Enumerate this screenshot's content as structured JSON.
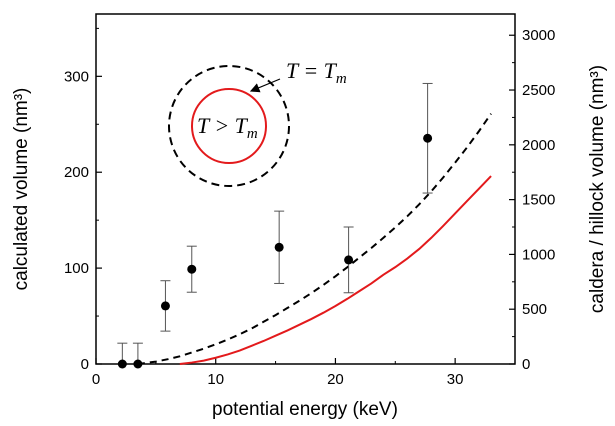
{
  "chart_data": {
    "type": "scatter",
    "xlabel": "potential energy (keV)",
    "ylabel_left": "calculated volume (nm³)",
    "ylabel_right": "caldera / hillock volume (nm³)",
    "xlim": [
      0,
      35
    ],
    "ylim_left": [
      0,
      365
    ],
    "ylim_right": [
      0,
      3193.75
    ],
    "x_ticks": [
      "0",
      "10",
      "20",
      "30"
    ],
    "y_left_ticks": [
      "0",
      "100",
      "200",
      "300"
    ],
    "y_right_ticks": [
      "0",
      "500",
      "1000",
      "1500",
      "2000",
      "2500",
      "3000"
    ],
    "series": [
      {
        "style": "dashed black line",
        "axis": "left",
        "x": [
          3.5,
          5,
          6,
          7,
          8,
          9,
          10,
          11,
          12,
          13,
          14,
          15,
          16,
          17,
          18,
          19,
          20,
          21,
          22,
          23,
          24,
          25,
          26,
          27,
          28,
          29,
          30,
          31,
          32,
          33
        ],
        "y": [
          0,
          2.5,
          5,
          8,
          12,
          16,
          20.5,
          25.5,
          31,
          37,
          44,
          51,
          58.5,
          66,
          74,
          82.5,
          91.5,
          101,
          111,
          121,
          131.5,
          142.5,
          154,
          166.5,
          180,
          194.5,
          210,
          226,
          243,
          261
        ]
      },
      {
        "style": "solid red line",
        "axis": "left",
        "x": [
          7,
          8,
          9,
          10,
          11,
          12,
          13,
          14,
          15,
          16,
          17,
          18,
          19,
          20,
          21,
          22,
          23,
          24,
          25,
          26,
          27,
          28,
          29,
          30,
          31,
          32,
          33
        ],
        "y": [
          0,
          1.5,
          3.5,
          6.5,
          10,
          14,
          19,
          24,
          29.5,
          35,
          41,
          47,
          53.5,
          60.5,
          68,
          76,
          84,
          93,
          101,
          110,
          120,
          131.5,
          144,
          157,
          170,
          183,
          196
        ]
      },
      {
        "style": "black points with error bars",
        "axis": "right",
        "points": [
          {
            "x": 2.2,
            "y": 0,
            "err": 190
          },
          {
            "x": 3.5,
            "y": 0,
            "err": 190
          },
          {
            "x": 5.8,
            "y": 530,
            "err": 230
          },
          {
            "x": 8.0,
            "y": 865,
            "err": 210
          },
          {
            "x": 15.3,
            "y": 1065,
            "err": 330
          },
          {
            "x": 21.1,
            "y": 950,
            "err": 300
          },
          {
            "x": 27.7,
            "y": 2060,
            "err": 500
          }
        ]
      }
    ],
    "annotations": [
      {
        "text": "T = T",
        "subscript": "m",
        "label": "outer dashed circle"
      },
      {
        "text": "T > T",
        "subscript": "m",
        "label": "inner red circle"
      }
    ]
  },
  "colors": {
    "model_red": "#e31a1c",
    "axis": "#000000",
    "error_bar": "#555555"
  }
}
